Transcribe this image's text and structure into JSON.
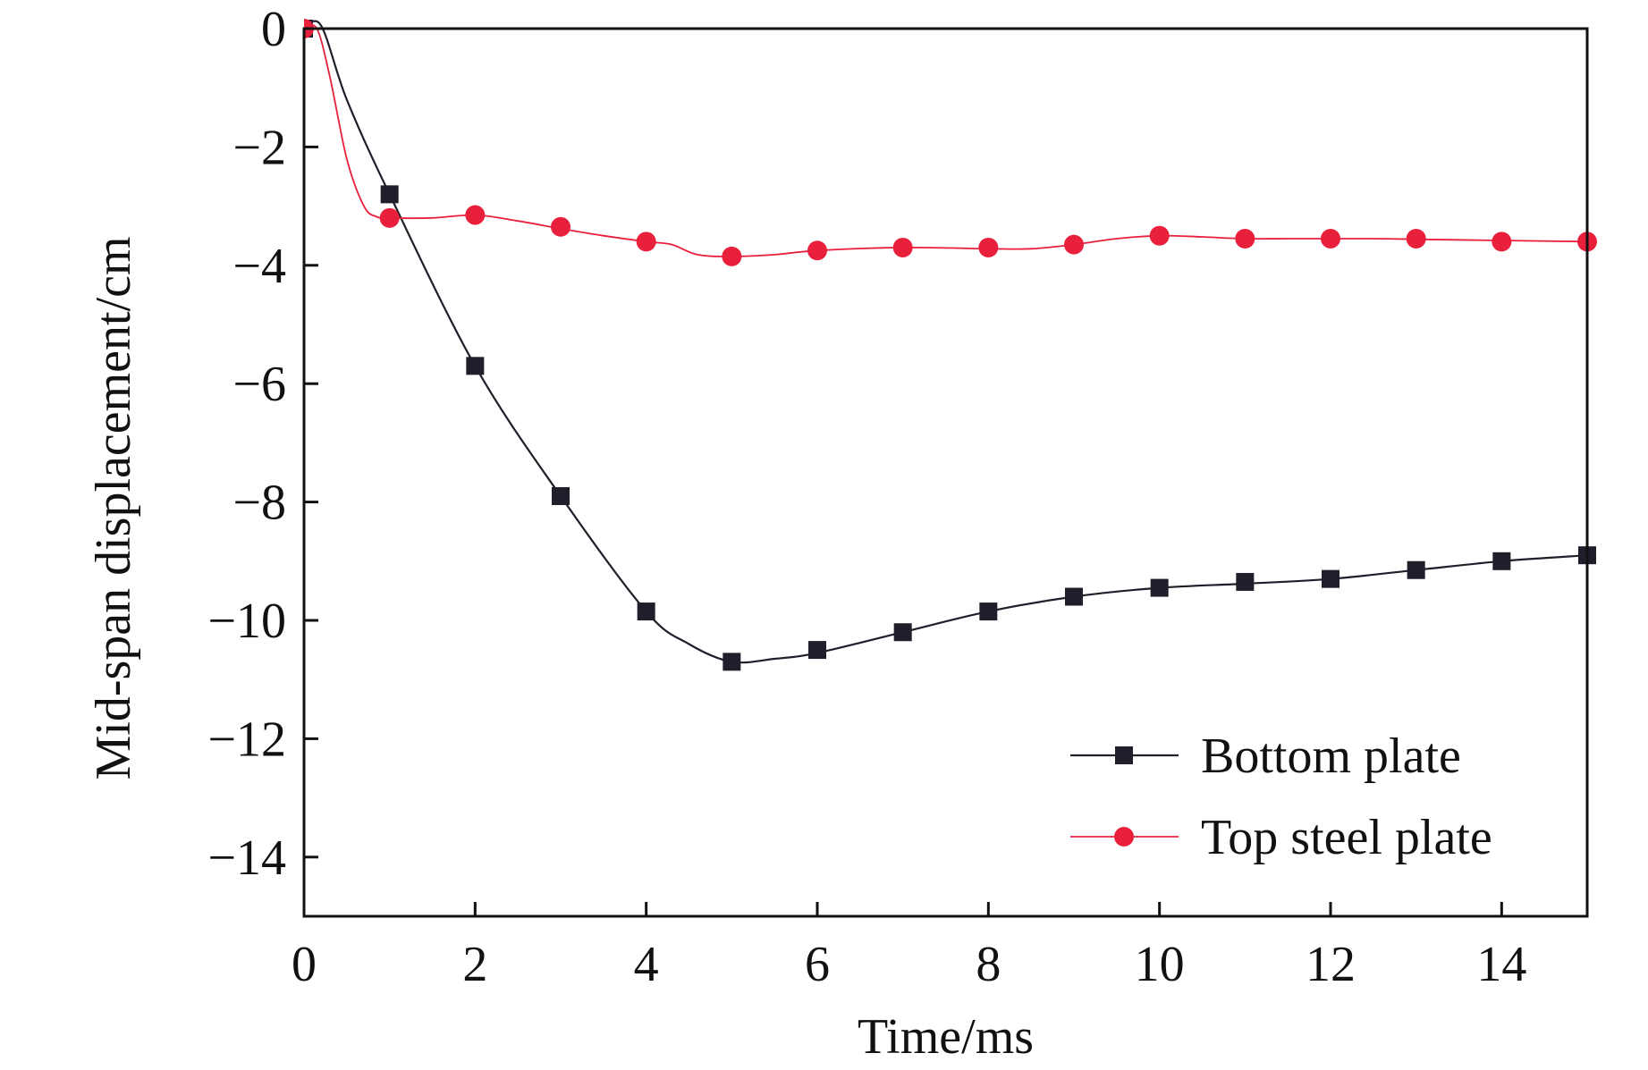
{
  "chart_data": {
    "type": "line",
    "title": "",
    "xlabel": "Time/ms",
    "ylabel": "Mid-span displacement/cm",
    "xlim": [
      0,
      15
    ],
    "ylim": [
      -15,
      0
    ],
    "xticks": [
      0,
      2,
      4,
      6,
      8,
      10,
      12,
      14
    ],
    "yticks": [
      0,
      -2,
      -4,
      -6,
      -8,
      -10,
      -12,
      -14
    ],
    "xtick_labels": [
      "0",
      "2",
      "4",
      "6",
      "8",
      "10",
      "12",
      "14"
    ],
    "ytick_labels": [
      "0",
      "−2",
      "−4",
      "−6",
      "−8",
      "−10",
      "−12",
      "−14"
    ],
    "grid": false,
    "legend_position": "bottom-right",
    "series": [
      {
        "name": "Bottom plate",
        "color": "#1f1f2b",
        "marker": "square",
        "markers_x": [
          0,
          1,
          2,
          3,
          4,
          5,
          6,
          7,
          8,
          9,
          10,
          11,
          12,
          13,
          14,
          15
        ],
        "markers_y": [
          0,
          -2.8,
          -5.7,
          -7.9,
          -9.85,
          -10.7,
          -10.5,
          -10.2,
          -9.85,
          -9.6,
          -9.45,
          -9.35,
          -9.3,
          -9.15,
          -9.0,
          -8.9
        ],
        "curve_x": [
          0,
          0.2,
          0.5,
          1,
          2,
          3,
          4,
          4.5,
          5,
          5.5,
          6,
          7,
          8,
          9,
          10,
          11,
          12,
          13,
          14,
          15
        ],
        "curve_y": [
          0,
          0.05,
          -1.2,
          -2.8,
          -5.7,
          -7.9,
          -9.85,
          -10.4,
          -10.7,
          -10.65,
          -10.55,
          -10.2,
          -9.85,
          -9.6,
          -9.45,
          -9.38,
          -9.3,
          -9.15,
          -9.0,
          -8.9
        ]
      },
      {
        "name": "Top steel plate",
        "color": "#e8203c",
        "marker": "circle",
        "markers_x": [
          0,
          1,
          2,
          3,
          4,
          5,
          6,
          7,
          8,
          9,
          10,
          11,
          12,
          13,
          14,
          15
        ],
        "markers_y": [
          0,
          -3.2,
          -3.15,
          -3.35,
          -3.6,
          -3.85,
          -3.75,
          -3.7,
          -3.7,
          -3.65,
          -3.5,
          -3.55,
          -3.55,
          -3.55,
          -3.6,
          -3.6
        ],
        "curve_x": [
          0,
          0.15,
          0.3,
          0.5,
          0.7,
          0.85,
          1,
          1.5,
          2,
          2.5,
          3,
          3.5,
          4,
          4.3,
          4.6,
          5,
          5.5,
          6,
          7,
          8,
          8.5,
          9,
          9.5,
          10,
          10.5,
          11,
          11.5,
          12,
          12.5,
          13,
          14,
          15
        ],
        "curve_y": [
          0,
          0,
          -0.8,
          -2.2,
          -3.0,
          -3.18,
          -3.2,
          -3.2,
          -3.15,
          -3.25,
          -3.38,
          -3.5,
          -3.6,
          -3.65,
          -3.82,
          -3.85,
          -3.82,
          -3.75,
          -3.7,
          -3.72,
          -3.72,
          -3.65,
          -3.55,
          -3.5,
          -3.52,
          -3.55,
          -3.55,
          -3.55,
          -3.55,
          -3.56,
          -3.58,
          -3.6
        ]
      }
    ]
  }
}
